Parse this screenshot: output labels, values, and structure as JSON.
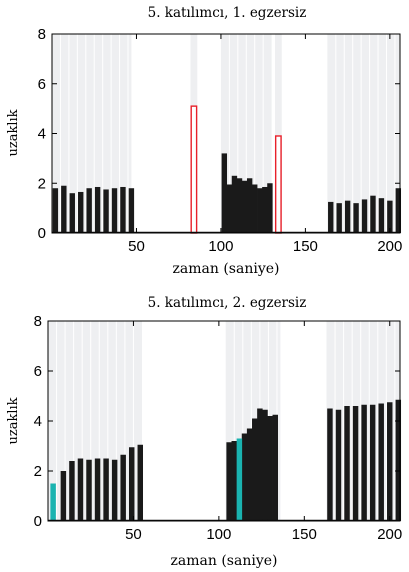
{
  "chart_data": [
    {
      "type": "bar",
      "title": "5. katılımcı, 1. egzersiz",
      "xlabel": "zaman (saniye)",
      "ylabel": "uzaklık",
      "xlim": [
        0,
        206
      ],
      "ylim": [
        0,
        8
      ],
      "xticks": [
        50,
        100,
        150,
        200
      ],
      "yticks": [
        0,
        2,
        4,
        6,
        8
      ],
      "bar_width": 3.2,
      "background_bands": [
        [
          0,
          47
        ],
        [
          82,
          86
        ],
        [
          100,
          130
        ],
        [
          132,
          136
        ],
        [
          163,
          206
        ]
      ],
      "series": [
        {
          "style": "normal",
          "color": "#1a1a1a",
          "x": [
            2,
            7,
            12,
            17,
            22,
            27,
            32,
            37,
            42,
            47,
            102,
            105,
            108,
            111,
            114,
            117,
            120,
            123,
            126,
            129,
            165,
            170,
            175,
            180,
            185,
            190,
            195,
            200,
            205
          ],
          "values": [
            1.8,
            1.9,
            1.6,
            1.65,
            1.8,
            1.85,
            1.75,
            1.8,
            1.85,
            1.8,
            3.2,
            1.95,
            2.3,
            2.2,
            2.1,
            2.2,
            1.95,
            1.8,
            1.85,
            2.0,
            1.25,
            1.2,
            1.3,
            1.2,
            1.35,
            1.5,
            1.4,
            1.3,
            1.8
          ]
        },
        {
          "style": "outlined",
          "color": "#e8202a",
          "x": [
            84,
            134
          ],
          "values": [
            5.1,
            3.9
          ]
        }
      ]
    },
    {
      "type": "bar",
      "title": "5. katılımcı, 2. egzersiz",
      "xlabel": "zaman (saniye)",
      "ylabel": "uzaklık",
      "xlim": [
        0,
        206
      ],
      "ylim": [
        0,
        8
      ],
      "xticks": [
        50,
        100,
        150,
        200
      ],
      "yticks": [
        0,
        2,
        4,
        6,
        8
      ],
      "bar_width": 3.2,
      "background_bands": [
        [
          0,
          55
        ],
        [
          104,
          136
        ],
        [
          163,
          206
        ]
      ],
      "series": [
        {
          "style": "normal",
          "color": "#1a1a1a",
          "x": [
            9,
            14,
            19,
            24,
            29,
            34,
            39,
            44,
            49,
            54,
            106,
            109,
            115,
            118,
            121,
            124,
            127,
            130,
            133,
            165,
            170,
            175,
            180,
            185,
            190,
            195,
            200,
            205
          ],
          "values": [
            2.0,
            2.4,
            2.5,
            2.45,
            2.5,
            2.5,
            2.45,
            2.65,
            2.95,
            3.05,
            3.15,
            3.2,
            3.5,
            3.7,
            4.1,
            4.5,
            4.45,
            4.2,
            4.25,
            4.5,
            4.45,
            4.6,
            4.6,
            4.65,
            4.65,
            4.7,
            4.75,
            4.85
          ]
        },
        {
          "style": "highlight",
          "color": "#1ab3b0",
          "x": [
            3,
            112
          ],
          "values": [
            1.5,
            3.3
          ]
        }
      ]
    }
  ]
}
